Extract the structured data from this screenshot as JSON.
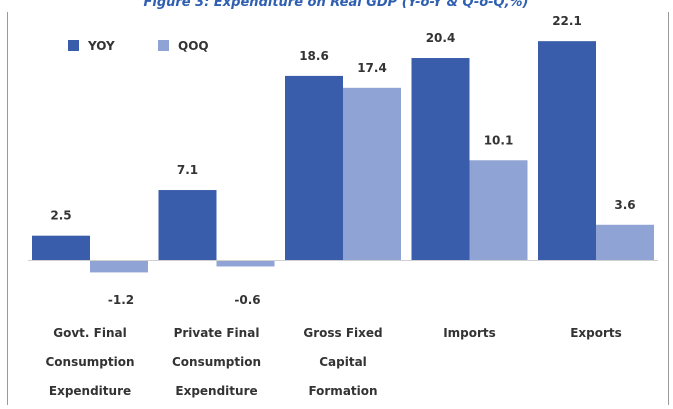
{
  "chart_data": {
    "type": "bar",
    "title": "Figure 3: Expenditure on Real GDP (Y-o-Y & Q-o-Q,%)",
    "categories": [
      [
        "Govt. Final",
        "Consumption",
        "Expenditure"
      ],
      [
        "Private Final",
        "Consumption",
        "Expenditure"
      ],
      [
        "Gross Fixed",
        "Capital",
        "Formation"
      ],
      [
        "Imports"
      ],
      [
        "Exports"
      ]
    ],
    "series": [
      {
        "name": "YOY",
        "values": [
          2.5,
          7.1,
          18.6,
          20.4,
          22.1
        ],
        "labels": [
          "2.5",
          "7.1",
          "18.6",
          "20.4",
          "22.1"
        ]
      },
      {
        "name": "QOQ",
        "values": [
          -1.2,
          -0.6,
          17.4,
          10.1,
          3.6
        ],
        "labels": [
          "-1.2",
          "-0.6",
          "17.4",
          "10.1",
          "3.6"
        ]
      }
    ],
    "legend_position": "top-left",
    "grid": false,
    "ylim": [
      -5,
      24
    ],
    "colors": {
      "YOY": "#3A5DAB",
      "QOQ": "#8FA3D5",
      "title": "#2E5FB0",
      "axis": "#D0D0D0"
    }
  }
}
